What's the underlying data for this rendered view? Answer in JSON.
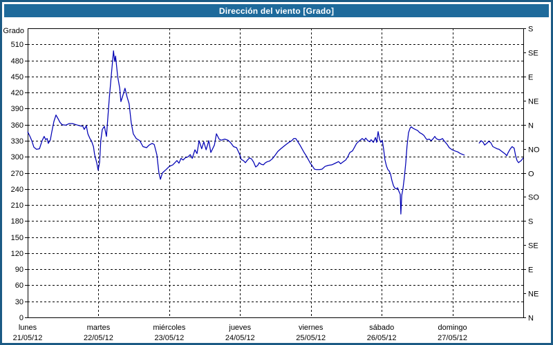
{
  "window": {
    "title": "Dirección del viento [Grado]"
  },
  "colors": {
    "frame_border": "#1b5a84",
    "titlebar_bg": "#1e6a9b",
    "titlebar_text": "#ffffff",
    "series_line": "#0000b4",
    "grid": "#000000",
    "axis": "#000000",
    "plot_bg": "#ffffff"
  },
  "chart_data": {
    "type": "line",
    "title": "Dirección del viento [Grado]",
    "grid": "dashed",
    "y_axis_left": {
      "title": "Grado",
      "min": 0,
      "max": 540,
      "label_step": 30,
      "max_label": 510
    },
    "y_axis_right": {
      "tick_step_deg": 45,
      "labels_bottom_to_top": [
        "N",
        "NE",
        "E",
        "SE",
        "S",
        "SO",
        "O",
        "NO",
        "N",
        "NE",
        "E",
        "SE",
        "S"
      ]
    },
    "x_axis": {
      "total_hours": 168,
      "tick_every_hours": 24,
      "days": [
        {
          "name": "lunes",
          "date": "21/05/12"
        },
        {
          "name": "martes",
          "date": "22/05/12"
        },
        {
          "name": "miércoles",
          "date": "23/05/12"
        },
        {
          "name": "jueves",
          "date": "24/05/12"
        },
        {
          "name": "viernes",
          "date": "25/05/12"
        },
        {
          "name": "sábado",
          "date": "26/05/12"
        },
        {
          "name": "domingo",
          "date": "27/05/12"
        }
      ]
    },
    "series": [
      {
        "name": "Dirección del viento",
        "unit": "Grado",
        "x_unit": "hours from 21/05/12 00:00",
        "segments": [
          [
            [
              0,
              347
            ],
            [
              0.7,
              339
            ],
            [
              1.4,
              330
            ],
            [
              2.1,
              318
            ],
            [
              3,
              314
            ],
            [
              4,
              315
            ],
            [
              4.9,
              330
            ],
            [
              5.6,
              338
            ],
            [
              6.1,
              332
            ],
            [
              6.6,
              334
            ],
            [
              7,
              325
            ],
            [
              7.7,
              332
            ],
            [
              8.2,
              347
            ],
            [
              8.9,
              366
            ],
            [
              9.6,
              378
            ],
            [
              10.3,
              371
            ],
            [
              11,
              364
            ],
            [
              11.7,
              360
            ],
            [
              12.9,
              359
            ],
            [
              14.1,
              362
            ],
            [
              15.2,
              362
            ],
            [
              16.4,
              360
            ],
            [
              17.6,
              358
            ],
            [
              18.7,
              357
            ],
            [
              19.2,
              351
            ],
            [
              19.9,
              358
            ],
            [
              20.4,
              343
            ],
            [
              21.1,
              334
            ],
            [
              21.6,
              330
            ],
            [
              22.3,
              319
            ],
            [
              22.7,
              304
            ],
            [
              23.4,
              289
            ],
            [
              23.9,
              275
            ],
            [
              24.4,
              290
            ],
            [
              24.8,
              330
            ],
            [
              25.3,
              351
            ],
            [
              26,
              357
            ],
            [
              26.7,
              338
            ],
            [
              27.7,
              411
            ],
            [
              28.4,
              455
            ],
            [
              29.1,
              498
            ],
            [
              29.5,
              478
            ],
            [
              29.8,
              488
            ],
            [
              30.5,
              450
            ],
            [
              31.2,
              428
            ],
            [
              31.6,
              403
            ],
            [
              32.3,
              415
            ],
            [
              33,
              428
            ],
            [
              33.7,
              412
            ],
            [
              34.4,
              399
            ],
            [
              35.1,
              364
            ],
            [
              35.8,
              343
            ],
            [
              36.8,
              334
            ],
            [
              38,
              330
            ],
            [
              39.1,
              319
            ],
            [
              40.3,
              317
            ],
            [
              41.2,
              322
            ],
            [
              42.2,
              325
            ],
            [
              42.9,
              323
            ],
            [
              43.8,
              304
            ],
            [
              44.5,
              270
            ],
            [
              45,
              258
            ],
            [
              45.7,
              270
            ],
            [
              46.9,
              276
            ],
            [
              48,
              282
            ],
            [
              49.2,
              285
            ],
            [
              49.9,
              289
            ],
            [
              50.6,
              293
            ],
            [
              51.3,
              288
            ],
            [
              52,
              297
            ],
            [
              52.7,
              294
            ],
            [
              53.4,
              298
            ],
            [
              54.4,
              300
            ],
            [
              55.1,
              304
            ],
            [
              55.8,
              297
            ],
            [
              56.7,
              313
            ],
            [
              57.4,
              306
            ],
            [
              58.1,
              330
            ],
            [
              59,
              315
            ],
            [
              59.7,
              328
            ],
            [
              60.5,
              313
            ],
            [
              61.4,
              330
            ],
            [
              62.1,
              308
            ],
            [
              63.3,
              322
            ],
            [
              64,
              343
            ],
            [
              64.9,
              333
            ],
            [
              65.6,
              331
            ],
            [
              66.8,
              333
            ],
            [
              67.9,
              331
            ],
            [
              68.7,
              327
            ],
            [
              69.8,
              319
            ],
            [
              70.8,
              317
            ],
            [
              71.9,
              304
            ],
            [
              72.4,
              295
            ],
            [
              73.1,
              293
            ],
            [
              73.8,
              289
            ],
            [
              74.5,
              294
            ],
            [
              75.2,
              298
            ],
            [
              75.9,
              296
            ],
            [
              76.6,
              290
            ],
            [
              77.3,
              281
            ],
            [
              78,
              284
            ],
            [
              78.5,
              289
            ],
            [
              79.2,
              286
            ],
            [
              79.9,
              285
            ],
            [
              80.6,
              289
            ],
            [
              81.3,
              291
            ],
            [
              82,
              292
            ],
            [
              82.9,
              296
            ],
            [
              83.9,
              303
            ],
            [
              84.8,
              310
            ],
            [
              85.8,
              315
            ],
            [
              86.7,
              319
            ],
            [
              87.6,
              323
            ],
            [
              88.6,
              327
            ],
            [
              89.5,
              330
            ],
            [
              90.2,
              334
            ],
            [
              90.9,
              334
            ],
            [
              91.6,
              328
            ],
            [
              92.3,
              322
            ],
            [
              93,
              315
            ],
            [
              93.7,
              308
            ],
            [
              94.4,
              302
            ],
            [
              95.1,
              295
            ],
            [
              95.8,
              288
            ],
            [
              96.5,
              283
            ],
            [
              97.2,
              277
            ],
            [
              97.9,
              276
            ],
            [
              98.9,
              276
            ],
            [
              99.8,
              277
            ],
            [
              100.8,
              282
            ],
            [
              101.9,
              284
            ],
            [
              103.1,
              285
            ],
            [
              104.3,
              288
            ],
            [
              105.4,
              291
            ],
            [
              106.1,
              287
            ],
            [
              106.8,
              290
            ],
            [
              107.8,
              294
            ],
            [
              108.5,
              300
            ],
            [
              109.2,
              308
            ],
            [
              110.1,
              311
            ],
            [
              110.8,
              318
            ],
            [
              111.5,
              325
            ],
            [
              112.5,
              330
            ],
            [
              113.4,
              334
            ],
            [
              114.1,
              331
            ],
            [
              114.6,
              335
            ],
            [
              115.3,
              330
            ],
            [
              116,
              328
            ],
            [
              116.4,
              332
            ],
            [
              117.2,
              327
            ],
            [
              117.9,
              336
            ],
            [
              118.3,
              327
            ],
            [
              118.8,
              347
            ],
            [
              119.3,
              332
            ],
            [
              119.7,
              327
            ],
            [
              120.2,
              331
            ],
            [
              120.7,
              313
            ],
            [
              121.1,
              295
            ],
            [
              121.6,
              283
            ],
            [
              122.1,
              276
            ],
            [
              122.5,
              274
            ],
            [
              123,
              268
            ],
            [
              123.5,
              255
            ],
            [
              124,
              246
            ],
            [
              124.4,
              242
            ],
            [
              124.9,
              240
            ],
            [
              125.4,
              242
            ],
            [
              125.8,
              236
            ],
            [
              126.3,
              230
            ],
            [
              126.5,
              193
            ],
            [
              126.8,
              228
            ],
            [
              127.2,
              240
            ],
            [
              127.7,
              262
            ],
            [
              128.2,
              290
            ],
            [
              128.6,
              320
            ],
            [
              129.1,
              345
            ],
            [
              129.6,
              353
            ],
            [
              130,
              356
            ],
            [
              130.7,
              353
            ],
            [
              131.4,
              351
            ],
            [
              132.2,
              349
            ],
            [
              132.9,
              345
            ],
            [
              133.6,
              343
            ],
            [
              134.3,
              340
            ],
            [
              135,
              334
            ],
            [
              135.4,
              332
            ],
            [
              136.1,
              333
            ],
            [
              136.8,
              330
            ],
            [
              137.5,
              334
            ],
            [
              138,
              338
            ],
            [
              138.5,
              334
            ],
            [
              139.2,
              332
            ],
            [
              139.9,
              332
            ],
            [
              140.6,
              334
            ],
            [
              141.3,
              329
            ],
            [
              142.2,
              323
            ],
            [
              142.9,
              317
            ],
            [
              143.9,
              313
            ],
            [
              144.8,
              311
            ],
            [
              145.8,
              309
            ],
            [
              146.7,
              306
            ],
            [
              147.6,
              304
            ],
            [
              148.1,
              303
            ]
          ],
          [
            [
              153,
              325
            ],
            [
              153.7,
              330
            ],
            [
              154.4,
              327
            ],
            [
              154.9,
              322
            ],
            [
              155.6,
              325
            ],
            [
              156.3,
              329
            ],
            [
              157,
              326
            ],
            [
              157.7,
              319
            ],
            [
              158.4,
              317
            ],
            [
              159.1,
              315
            ],
            [
              159.8,
              314
            ],
            [
              160.5,
              311
            ],
            [
              161.2,
              308
            ],
            [
              161.9,
              305
            ],
            [
              162.4,
              302
            ],
            [
              162.8,
              307
            ],
            [
              163.5,
              314
            ],
            [
              164.2,
              319
            ],
            [
              164.9,
              316
            ],
            [
              165.4,
              302
            ],
            [
              165.9,
              293
            ],
            [
              166.4,
              289
            ],
            [
              166.8,
              291
            ],
            [
              167.3,
              293
            ],
            [
              168,
              298
            ]
          ]
        ]
      }
    ]
  }
}
